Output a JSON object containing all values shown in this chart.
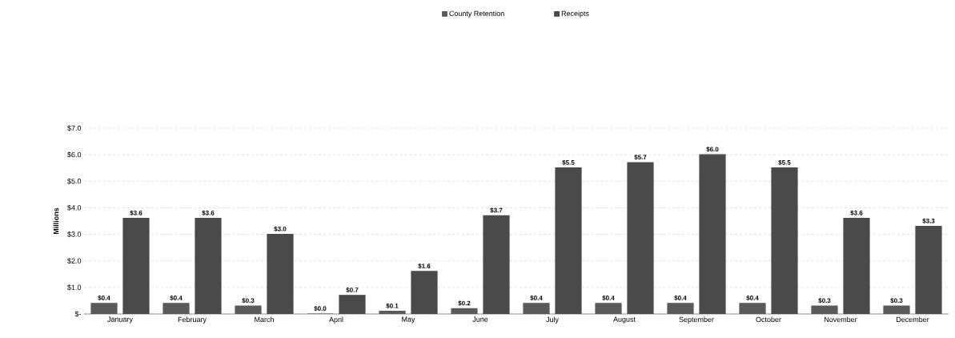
{
  "chart_data": {
    "type": "bar",
    "ylabel": "Millions",
    "categories": [
      "January",
      "February",
      "March",
      "April",
      "May",
      "June",
      "July",
      "August",
      "September",
      "October",
      "November",
      "December"
    ],
    "series": [
      {
        "name": "County Retention",
        "color": "#5a5a5a",
        "values": [
          0.4,
          0.4,
          0.3,
          0.0,
          0.1,
          0.2,
          0.4,
          0.4,
          0.4,
          0.4,
          0.3,
          0.3
        ],
        "value_labels": [
          "$0.4",
          "$0.4",
          "$0.3",
          "$0.0",
          "$0.1",
          "$0.2",
          "$0.4",
          "$0.4",
          "$0.4",
          "$0.4",
          "$0.3",
          "$0.3"
        ]
      },
      {
        "name": "Receipts",
        "color": "#4a4a4a",
        "values": [
          3.6,
          3.6,
          3.0,
          0.7,
          1.6,
          3.7,
          5.5,
          5.7,
          6.0,
          5.5,
          3.6,
          3.3
        ],
        "value_labels": [
          "$3.6",
          "$3.6",
          "$3.0",
          "$0.7",
          "$1.6",
          "$3.7",
          "$5.5",
          "$5.7",
          "$6.0",
          "$5.5",
          "$3.6",
          "$3.3"
        ]
      }
    ],
    "ylim": [
      0,
      7
    ],
    "yticks": [
      {
        "value": 0,
        "label": "$-"
      },
      {
        "value": 1,
        "label": "$1.0"
      },
      {
        "value": 2,
        "label": "$2.0"
      },
      {
        "value": 3,
        "label": "$3.0"
      },
      {
        "value": 4,
        "label": "$4.0"
      },
      {
        "value": 5,
        "label": "$5.0"
      },
      {
        "value": 6,
        "label": "$6.0"
      },
      {
        "value": 7,
        "label": "$7.0"
      }
    ],
    "grid": "y",
    "legend": "top"
  }
}
